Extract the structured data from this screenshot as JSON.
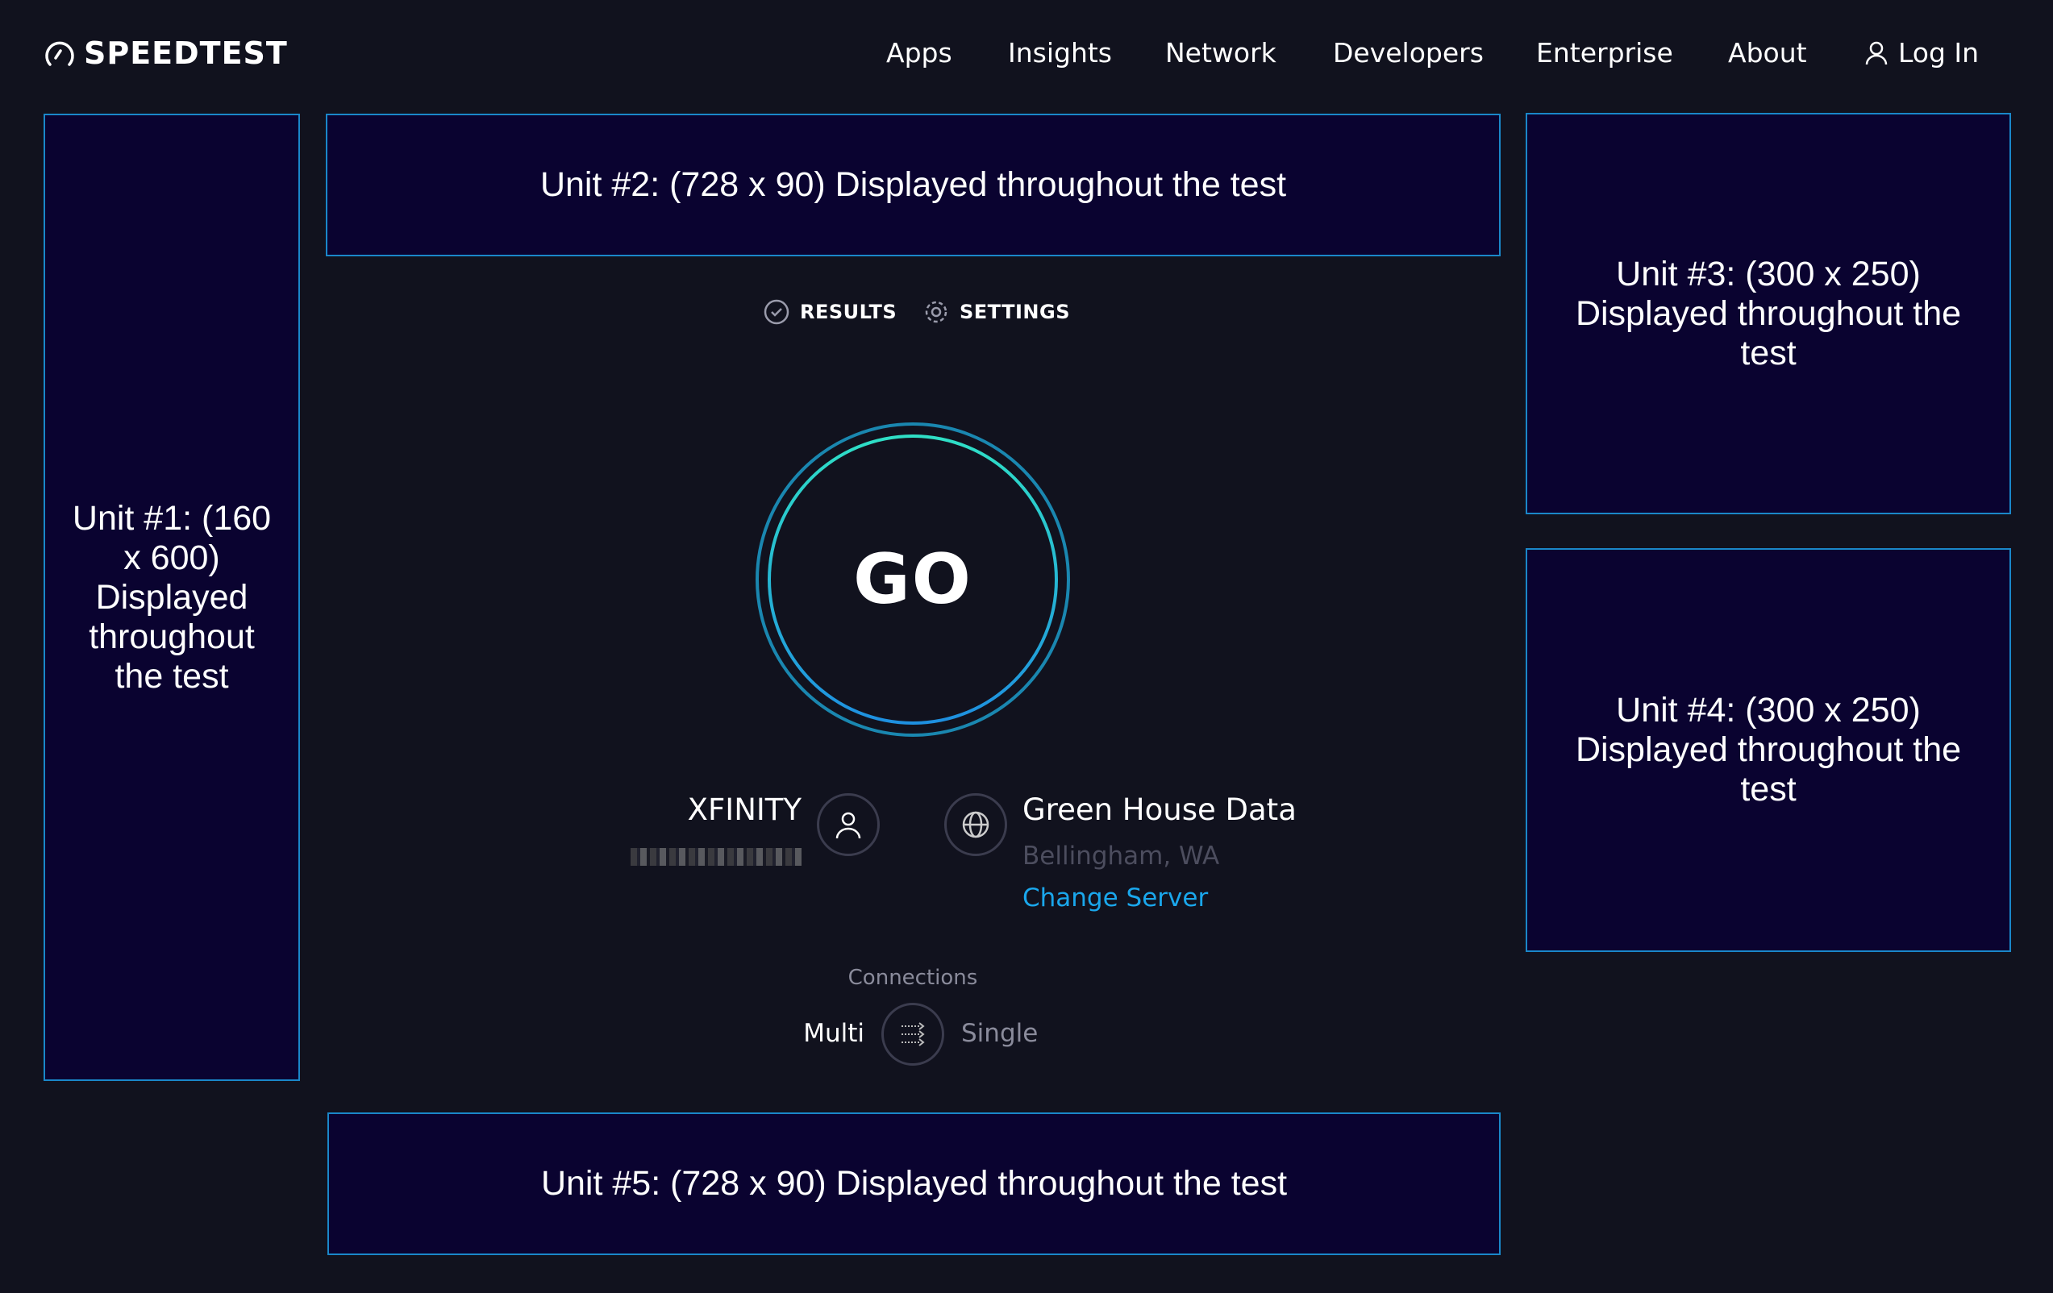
{
  "header": {
    "logo_text": "SPEEDTEST",
    "nav": [
      "Apps",
      "Insights",
      "Network",
      "Developers",
      "Enterprise",
      "About"
    ],
    "login_label": "Log In"
  },
  "ads": {
    "unit1": "Unit #1: (160 x 600) Displayed throughout the test",
    "unit2": "Unit #2: (728 x 90) Displayed throughout the test",
    "unit3": "Unit #3: (300 x 250) Displayed throughout the test",
    "unit4": "Unit #4: (300 x 250) Displayed throughout the test",
    "unit5": "Unit #5: (728 x 90) Displayed throughout the test"
  },
  "tabs": {
    "results": "RESULTS",
    "settings": "SETTINGS"
  },
  "go_label": "GO",
  "isp": {
    "name": "XFINITY"
  },
  "server": {
    "name": "Green House Data",
    "location": "Bellingham, WA",
    "change_label": "Change Server"
  },
  "connections": {
    "label": "Connections",
    "multi": "Multi",
    "single": "Single",
    "selected": "Multi"
  },
  "colors": {
    "background": "#11121e",
    "accent": "#1aa7ec",
    "ad_fill": "#0a0330",
    "ad_border": "#1a87c9"
  }
}
